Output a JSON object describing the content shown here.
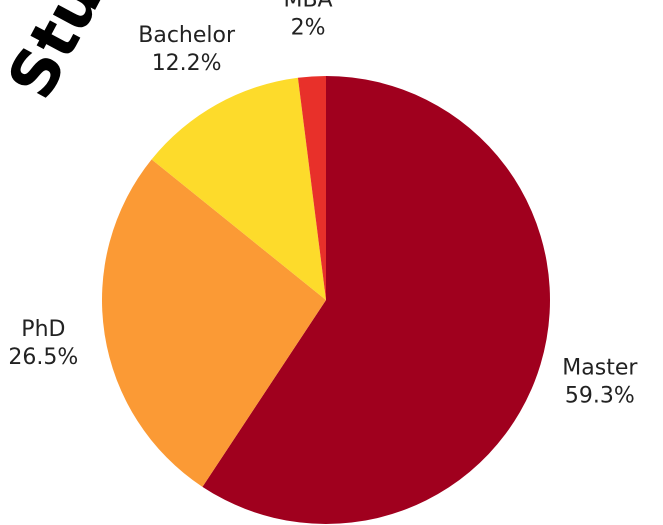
{
  "chart_data": {
    "type": "pie",
    "title": "Stude",
    "categories": [
      "Master",
      "PhD",
      "Bachelor",
      "MBA"
    ],
    "values": [
      59.3,
      26.5,
      12.2,
      2
    ],
    "value_labels": [
      "59.3%",
      "26.5%",
      "12.2%",
      "2%"
    ],
    "colors": [
      "#a0001e",
      "#fb9a35",
      "#fddb2b",
      "#e8302a"
    ],
    "direction": "clockwise",
    "start_angle": 0
  }
}
